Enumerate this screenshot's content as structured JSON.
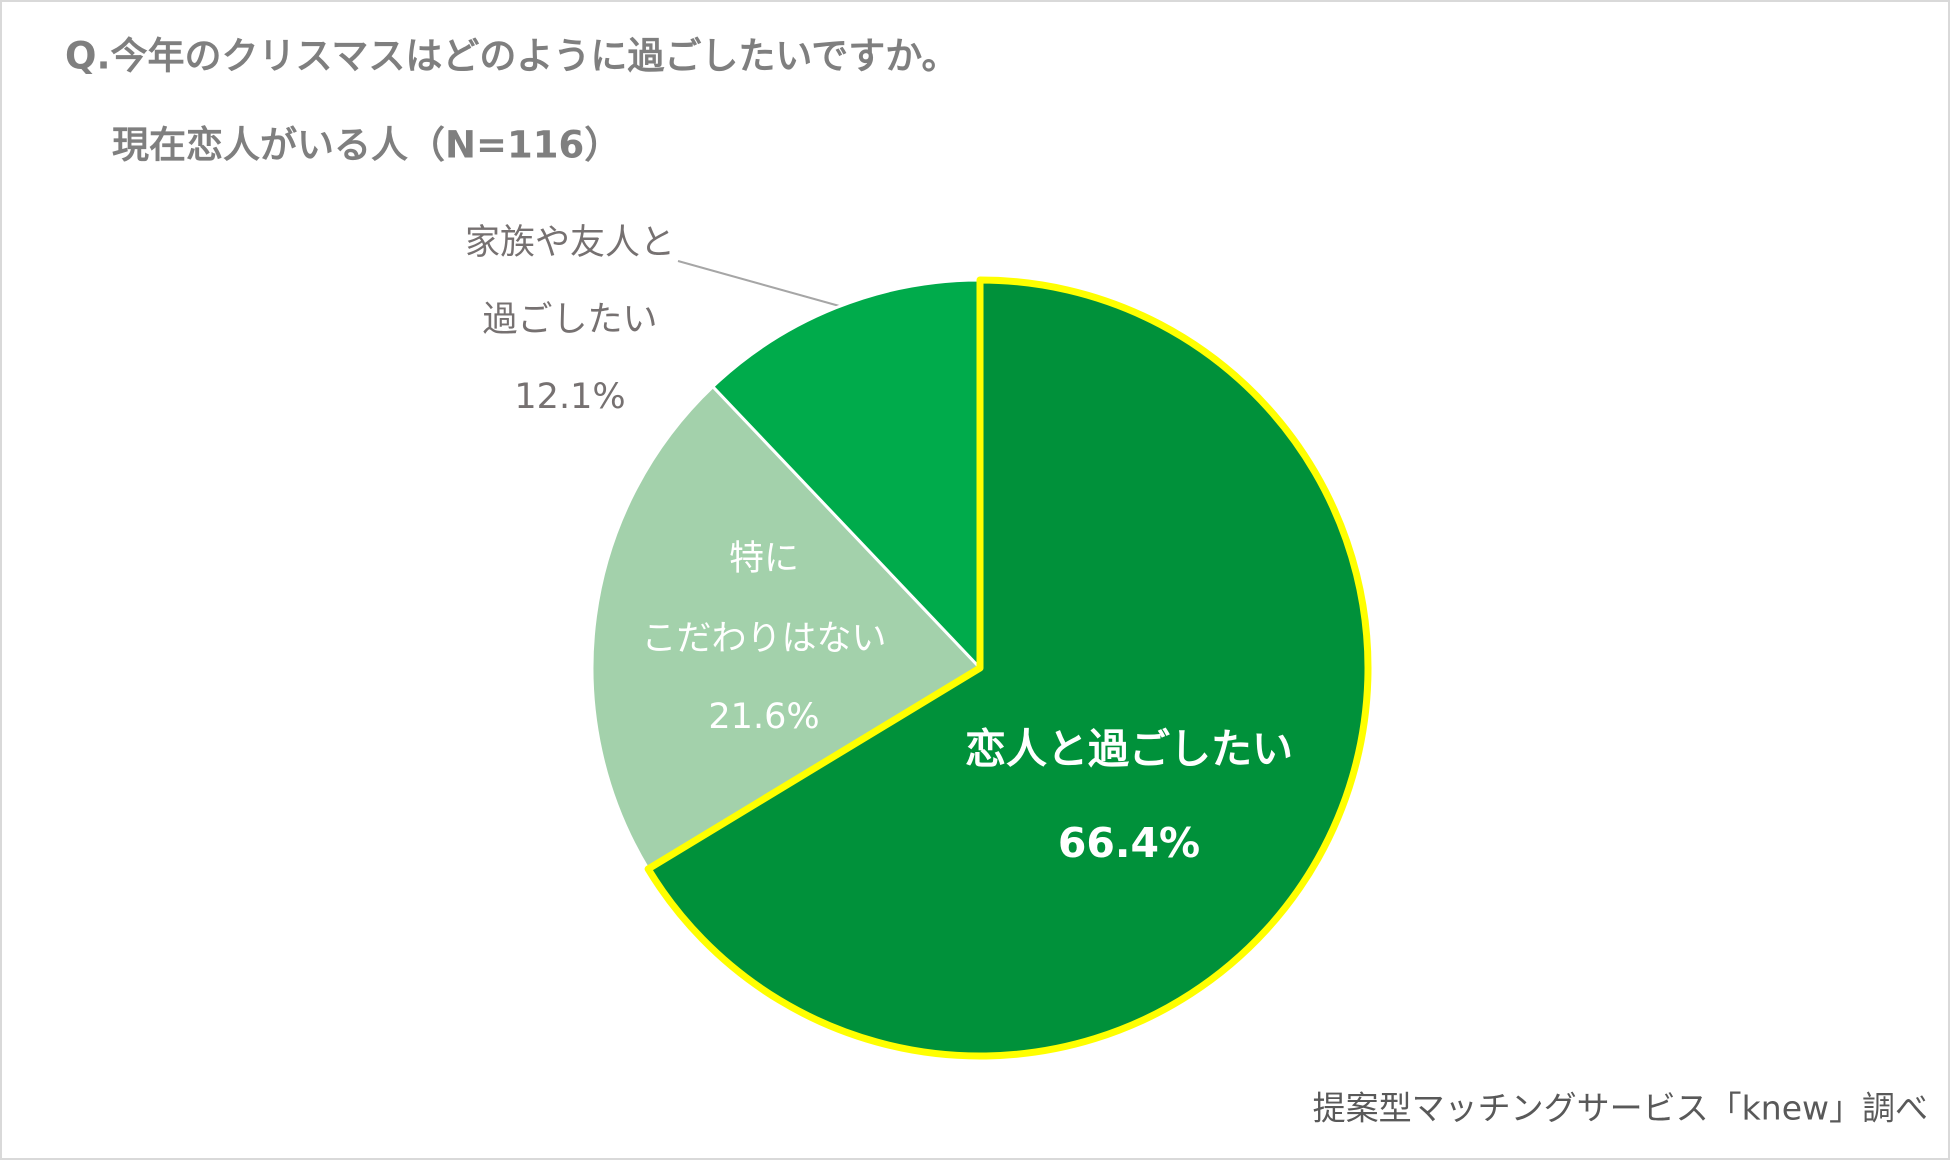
{
  "chart_data": {
    "type": "pie",
    "title": "Q.今年のクリスマスはどのように過ごしたいですか。",
    "subtitle": "現在恋人がいる人（N=116）",
    "source": "提案型マッチングサービス「knew」調べ",
    "categories": [
      [
        "恋人と過ごしたい"
      ],
      [
        "特に",
        "こだわりはない"
      ],
      [
        "家族や友人と",
        "過ごしたい"
      ]
    ],
    "values": [
      66.4,
      21.6,
      12.1
    ],
    "value_labels": [
      "66.4%",
      "21.6%",
      "12.1%"
    ],
    "colors": [
      "#00913a",
      "#a3d1ab",
      "#00ab4b"
    ]
  }
}
